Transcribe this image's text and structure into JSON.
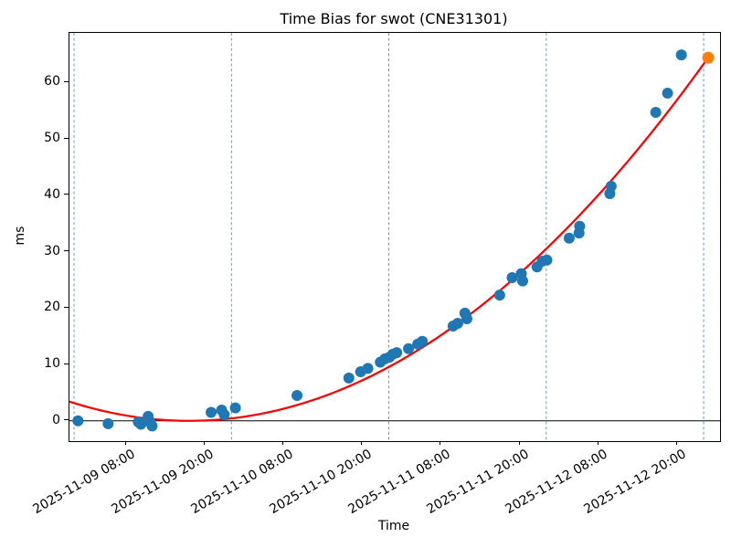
{
  "title": "Time Bias for swot (CNE31301)",
  "chart_data": {
    "type": "scatter",
    "title": "Time Bias for swot (CNE31301)",
    "xlabel": "Time",
    "ylabel": "ms",
    "grid": "vertical dashed lines at each midnight only",
    "legend": "none",
    "x_axis": {
      "unit": "hours since 2025-11-09 00:00",
      "lim": [
        -0.7,
        98.5
      ],
      "ticks": [
        {
          "t": 8,
          "label": "2025-11-09 08:00"
        },
        {
          "t": 20,
          "label": "2025-11-09 20:00"
        },
        {
          "t": 32,
          "label": "2025-11-10 08:00"
        },
        {
          "t": 44,
          "label": "2025-11-10 20:00"
        },
        {
          "t": 56,
          "label": "2025-11-11 08:00"
        },
        {
          "t": 68,
          "label": "2025-11-11 20:00"
        },
        {
          "t": 80,
          "label": "2025-11-12 08:00"
        },
        {
          "t": 92,
          "label": "2025-11-12 20:00"
        }
      ],
      "tick_label_rotation_deg": 30
    },
    "y_axis": {
      "lim": [
        -3.6,
        68.8
      ],
      "ticks": [
        0,
        10,
        20,
        30,
        40,
        50,
        60
      ]
    },
    "vertical_gridlines_hours": [
      0,
      24,
      48,
      72,
      96
    ],
    "zero_line_ms": 0,
    "colors": {
      "measurements": "#1f77b4",
      "latest_point": "#ff7f0e",
      "fit_curve": "#ff0000",
      "day_gridline": "#4f94c4",
      "zero_line": "#000000"
    },
    "series": [
      {
        "name": "time-bias-measurements",
        "type": "scatter",
        "color": "#1f77b4",
        "marker_radius": 6,
        "points_t_ms": [
          [
            0.6,
            0.0
          ],
          [
            5.2,
            -0.5
          ],
          [
            9.8,
            -0.2
          ],
          [
            10.2,
            -0.6
          ],
          [
            11.3,
            0.8
          ],
          [
            11.6,
            -0.2
          ],
          [
            11.9,
            -0.9
          ],
          [
            20.9,
            1.5
          ],
          [
            22.5,
            1.9
          ],
          [
            22.9,
            1.1
          ],
          [
            24.6,
            2.3
          ],
          [
            34.0,
            4.5
          ],
          [
            41.9,
            7.6
          ],
          [
            43.7,
            8.7
          ],
          [
            44.8,
            9.3
          ],
          [
            46.7,
            10.4
          ],
          [
            47.4,
            11.0
          ],
          [
            48.1,
            11.3
          ],
          [
            48.6,
            11.8
          ],
          [
            49.2,
            12.1
          ],
          [
            51.0,
            12.8
          ],
          [
            52.4,
            13.6
          ],
          [
            53.1,
            14.1
          ],
          [
            57.8,
            16.8
          ],
          [
            58.5,
            17.3
          ],
          [
            59.6,
            19.1
          ],
          [
            59.9,
            18.1
          ],
          [
            64.9,
            22.3
          ],
          [
            66.8,
            25.4
          ],
          [
            68.2,
            26.1
          ],
          [
            68.4,
            24.8
          ],
          [
            70.6,
            27.3
          ],
          [
            71.4,
            28.3
          ],
          [
            72.1,
            28.5
          ],
          [
            75.5,
            32.4
          ],
          [
            77.0,
            33.3
          ],
          [
            77.1,
            34.5
          ],
          [
            81.7,
            40.3
          ],
          [
            81.9,
            41.6
          ],
          [
            88.7,
            54.7
          ],
          [
            90.5,
            58.1
          ],
          [
            92.6,
            64.9
          ]
        ]
      },
      {
        "name": "latest-measurement",
        "type": "scatter",
        "color": "#ff7f0e",
        "marker_radius": 6.5,
        "points_t_ms": [
          [
            96.7,
            64.4
          ]
        ]
      },
      {
        "name": "quadratic-fit",
        "type": "line",
        "color": "#ff0000",
        "line_width": 2.25,
        "fit": {
          "form": "ms = a*(t-t0)^2",
          "a": 0.01027,
          "t0": 17.5,
          "t_range": [
            -0.7,
            96.7
          ]
        }
      }
    ]
  }
}
